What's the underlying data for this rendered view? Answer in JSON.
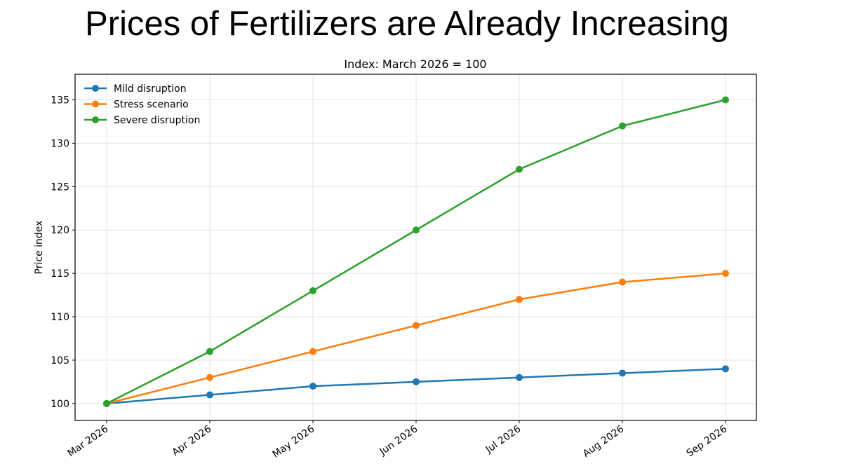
{
  "slide_title": "Prices of Fertilizers are Already Increasing",
  "chart_data": {
    "type": "line",
    "title": "Index: March 2026 = 100",
    "xlabel": "",
    "ylabel": "Price index",
    "categories": [
      "Mar 2026",
      "Apr 2026",
      "May 2026",
      "Jun 2026",
      "Jul 2026",
      "Aug 2026",
      "Sep 2026"
    ],
    "ylim": [
      98.05,
      137.95
    ],
    "yticks": [
      100,
      105,
      110,
      115,
      120,
      125,
      130,
      135
    ],
    "grid": true,
    "legend_position": "top-left",
    "series": [
      {
        "name": "Mild disruption",
        "color": "#1f77b4",
        "values": [
          100,
          101,
          102,
          102.5,
          103,
          103.5,
          104
        ]
      },
      {
        "name": "Stress scenario",
        "color": "#ff7f0e",
        "values": [
          100,
          103,
          106,
          109,
          112,
          114,
          115
        ]
      },
      {
        "name": "Severe disruption",
        "color": "#2ca02c",
        "values": [
          100,
          106,
          113,
          120,
          127,
          132,
          135
        ]
      }
    ]
  }
}
